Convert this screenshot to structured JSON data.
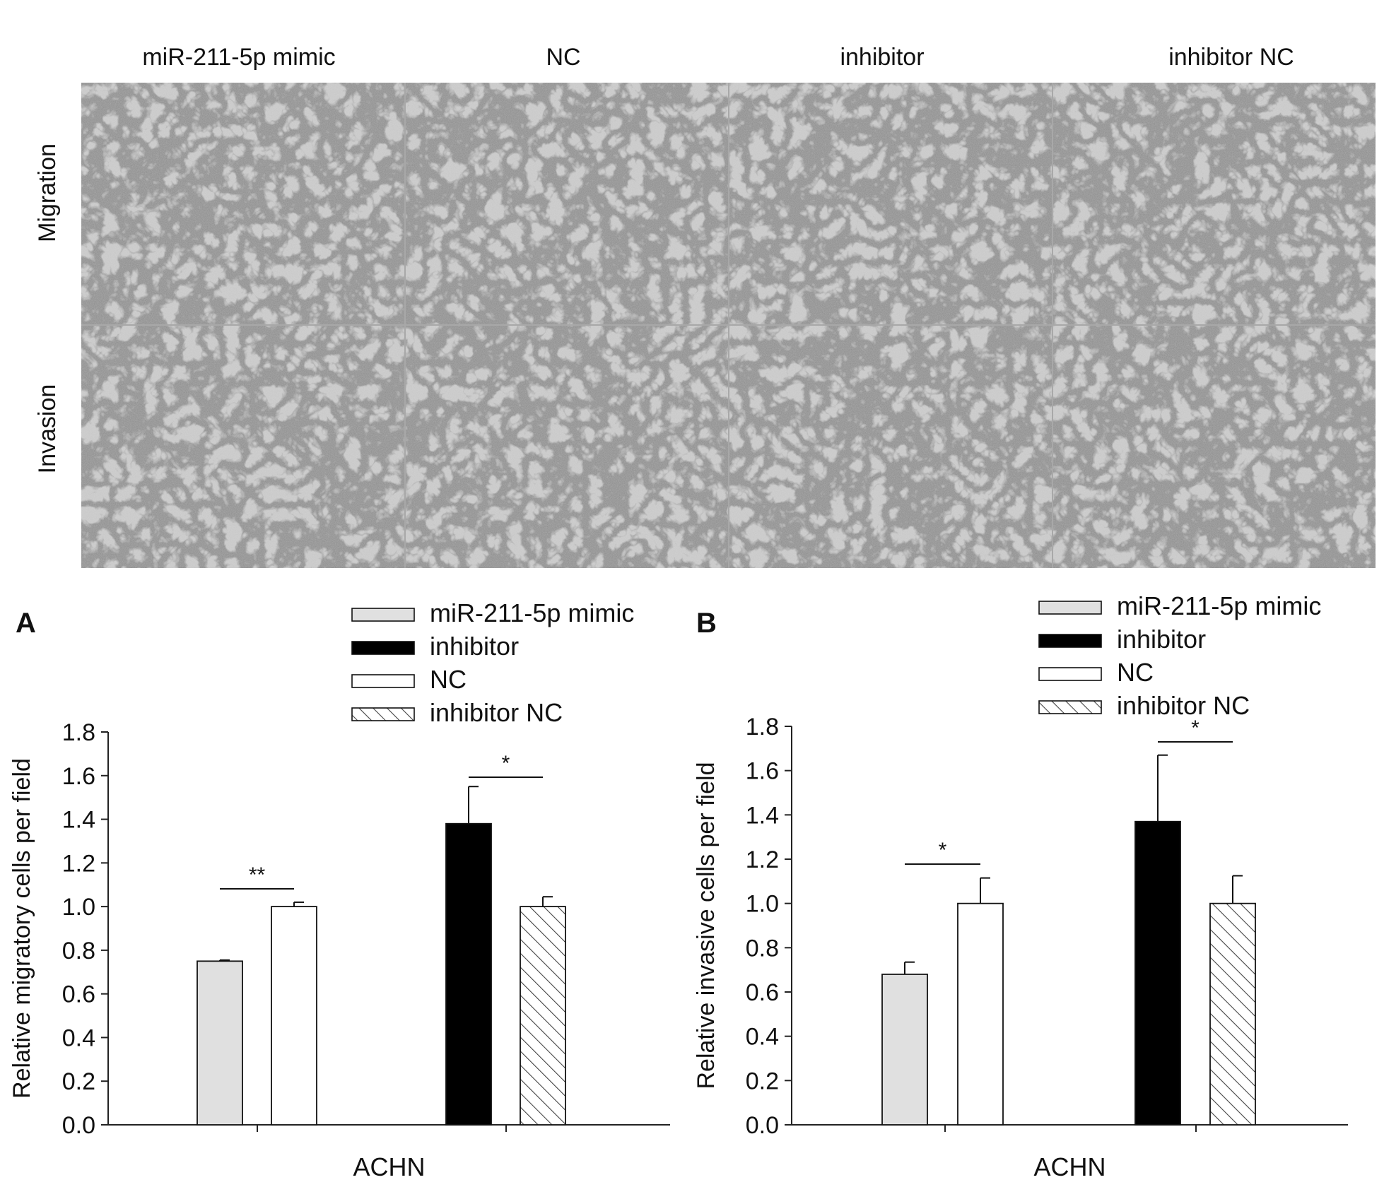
{
  "micrographs": {
    "column_labels": [
      "miR-211-5p mimic",
      "NC",
      "inhibitor",
      "inhibitor NC"
    ],
    "row_labels": [
      "Migration",
      "Invasion"
    ]
  },
  "colors": {
    "mimic": "#e0e0e0",
    "inhibitor": "#000000",
    "nc": "#ffffff",
    "inhibitor_nc_hatch": "#444444",
    "axis": "#222222",
    "micrograph_bg": "#c8c8c8",
    "cell": "#3c3c3c"
  },
  "legend": {
    "entries": [
      {
        "label": "miR-211-5p mimic",
        "pattern": "solid-gray"
      },
      {
        "label": "inhibitor",
        "pattern": "solid-black"
      },
      {
        "label": "NC",
        "pattern": "solid-white"
      },
      {
        "label": "inhibitor NC",
        "pattern": "hatched"
      }
    ]
  },
  "chart_data": [
    {
      "type": "bar",
      "panel_label": "A",
      "title": "",
      "xlabel": "ACHN",
      "ylabel": "Relative migratory cells per field",
      "ylim": [
        0,
        1.8
      ],
      "yticks": [
        "0.0",
        "0.2",
        "0.4",
        "0.6",
        "0.8",
        "1.0",
        "1.2",
        "1.4",
        "1.6",
        "1.8"
      ],
      "grid": false,
      "legend_position": "top-right",
      "bars": [
        {
          "series": "miR-211-5p mimic",
          "value": 0.75,
          "error": 0.005
        },
        {
          "series": "NC",
          "value": 1.0,
          "error": 0.02
        },
        {
          "series": "inhibitor",
          "value": 1.38,
          "error": 0.17
        },
        {
          "series": "inhibitor NC",
          "value": 1.0,
          "error": 0.045
        }
      ],
      "significance": [
        {
          "between": [
            "miR-211-5p mimic",
            "NC"
          ],
          "label": "**"
        },
        {
          "between": [
            "inhibitor",
            "inhibitor NC"
          ],
          "label": "*"
        }
      ]
    },
    {
      "type": "bar",
      "panel_label": "B",
      "title": "",
      "xlabel": "ACHN",
      "ylabel": "Relative invasive cells per field",
      "ylim": [
        0,
        1.8
      ],
      "yticks": [
        "0.0",
        "0.2",
        "0.4",
        "0.6",
        "0.8",
        "1.0",
        "1.2",
        "1.4",
        "1.6",
        "1.8"
      ],
      "grid": false,
      "legend_position": "top-right",
      "bars": [
        {
          "series": "miR-211-5p mimic",
          "value": 0.68,
          "error": 0.055
        },
        {
          "series": "NC",
          "value": 1.0,
          "error": 0.115
        },
        {
          "series": "inhibitor",
          "value": 1.37,
          "error": 0.3
        },
        {
          "series": "inhibitor NC",
          "value": 1.0,
          "error": 0.125
        }
      ],
      "significance": [
        {
          "between": [
            "miR-211-5p mimic",
            "NC"
          ],
          "label": "*"
        },
        {
          "between": [
            "inhibitor",
            "inhibitor NC"
          ],
          "label": "*"
        }
      ]
    }
  ]
}
